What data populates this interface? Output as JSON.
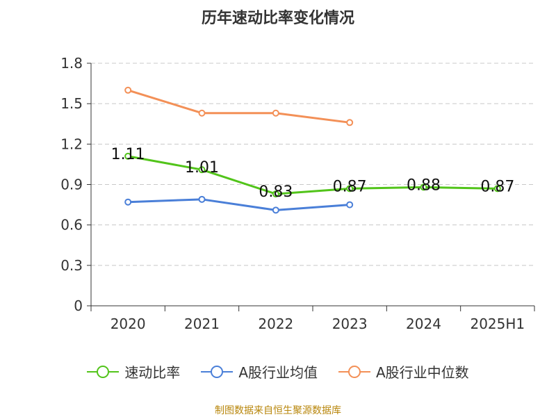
{
  "title": "历年速动比率变化情况",
  "source": "制图数据来自恒生聚源数据库",
  "colors": {
    "speed_ratio": "#52c41a",
    "industry_avg": "#4a7fd8",
    "industry_median": "#f39057",
    "grid": "#c8c8c8",
    "axis": "#333333",
    "text": "#333333"
  },
  "chart_data": {
    "type": "line",
    "title": "历年速动比率变化情况",
    "categories": [
      "2020",
      "2021",
      "2022",
      "2023",
      "2024",
      "2025H1"
    ],
    "ylim": [
      0,
      1.8
    ],
    "yticks": [
      "0",
      "0.3",
      "0.6",
      "0.9",
      "1.2",
      "1.5",
      "1.8"
    ],
    "ytick_values": [
      0,
      0.3,
      0.6,
      0.9,
      1.2,
      1.5,
      1.8
    ],
    "grid": true,
    "legend_position": "bottom",
    "series": [
      {
        "name": "速动比率",
        "color": "#52c41a",
        "values": [
          1.11,
          1.01,
          0.83,
          0.87,
          0.88,
          0.87
        ],
        "labels": [
          "1.11",
          "1.01",
          "0.83",
          "0.87",
          "0.88",
          "0.87"
        ],
        "show_labels": true
      },
      {
        "name": "A股行业均值",
        "color": "#4a7fd8",
        "values": [
          0.77,
          0.79,
          0.71,
          0.75,
          null,
          null
        ],
        "show_labels": false
      },
      {
        "name": "A股行业中位数",
        "color": "#f39057",
        "values": [
          1.6,
          1.43,
          1.43,
          1.36,
          null,
          null
        ],
        "show_labels": false
      }
    ]
  }
}
